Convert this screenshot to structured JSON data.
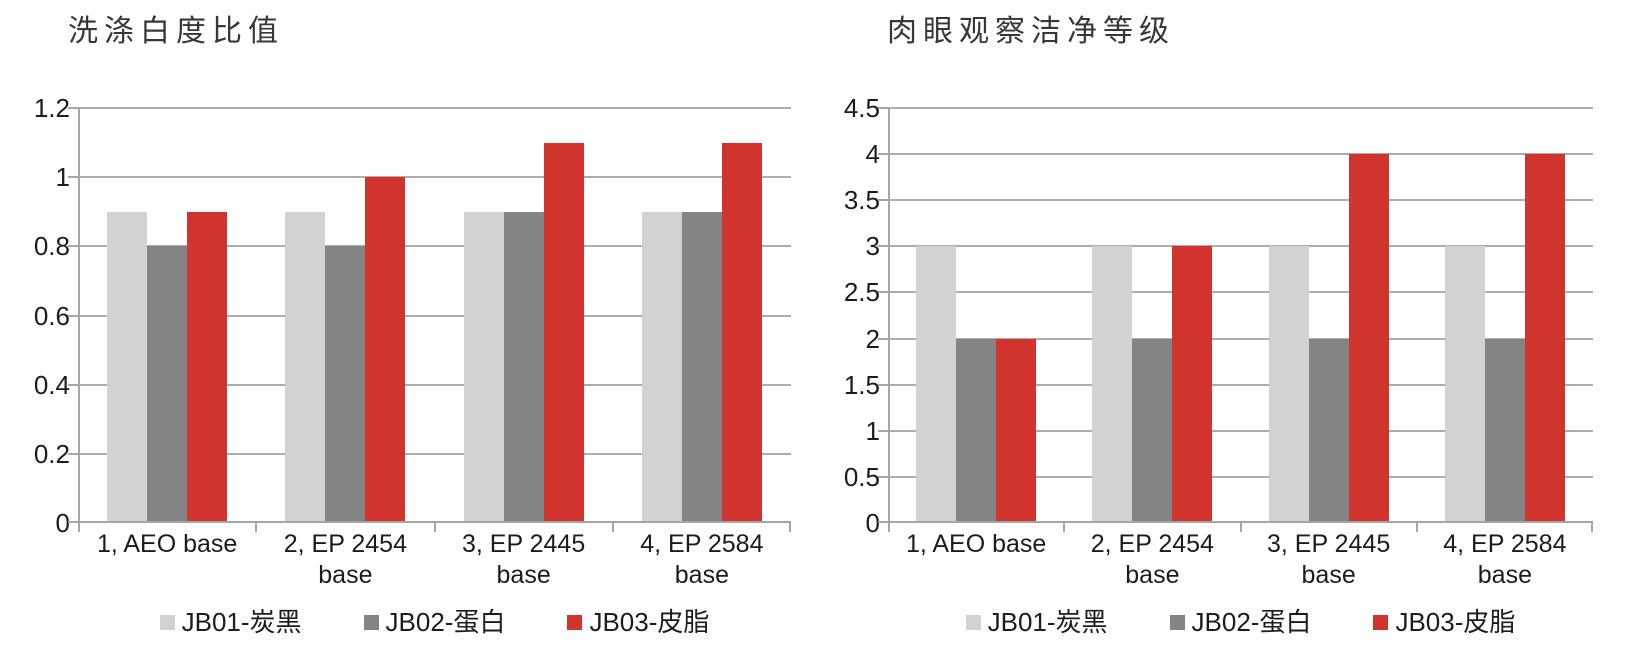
{
  "chart_data": [
    {
      "type": "bar",
      "title": "洗涤白度比值",
      "categories": [
        "1, AEO base",
        "2, EP 2454 base",
        "3, EP 2445 base",
        "4, EP 2584 base"
      ],
      "series": [
        {
          "name": "JB01-炭黑",
          "color": "#d2d2d2",
          "values": [
            0.9,
            0.9,
            0.9,
            0.9
          ]
        },
        {
          "name": "JB02-蛋白",
          "color": "#848484",
          "values": [
            0.8,
            0.8,
            0.9,
            0.9
          ]
        },
        {
          "name": "JB03-皮脂",
          "color": "#d0342c",
          "values": [
            0.9,
            1.0,
            1.1,
            1.1
          ]
        }
      ],
      "xlabel": "",
      "ylabel": "",
      "ylim": [
        0,
        1.2
      ],
      "yticks": [
        "0",
        "0.2",
        "0.4",
        "0.6",
        "0.8",
        "1",
        "1.2"
      ],
      "grid": true,
      "legend_position": "bottom"
    },
    {
      "type": "bar",
      "title": "肉眼观察洁净等级",
      "categories": [
        "1, AEO base",
        "2, EP 2454 base",
        "3, EP 2445 base",
        "4, EP 2584 base"
      ],
      "series": [
        {
          "name": "JB01-炭黑",
          "color": "#d2d2d2",
          "values": [
            3,
            3,
            3,
            3
          ]
        },
        {
          "name": "JB02-蛋白",
          "color": "#848484",
          "values": [
            2,
            2,
            2,
            2
          ]
        },
        {
          "name": "JB03-皮脂",
          "color": "#d0342c",
          "values": [
            2,
            3,
            4,
            4
          ]
        }
      ],
      "xlabel": "",
      "ylabel": "",
      "ylim": [
        0,
        4.5
      ],
      "yticks": [
        "0",
        "0.5",
        "1",
        "1.5",
        "2",
        "2.5",
        "3",
        "3.5",
        "4",
        "4.5"
      ],
      "grid": true,
      "legend_position": "bottom"
    }
  ],
  "colors": {
    "series_light_gray": "#d2d2d2",
    "series_dark_gray": "#848484",
    "series_red": "#d0342c",
    "gridline": "#adadad",
    "axis": "#a6a6a6",
    "title_text": "#3a3632",
    "tick_text": "#1c1c1c"
  }
}
